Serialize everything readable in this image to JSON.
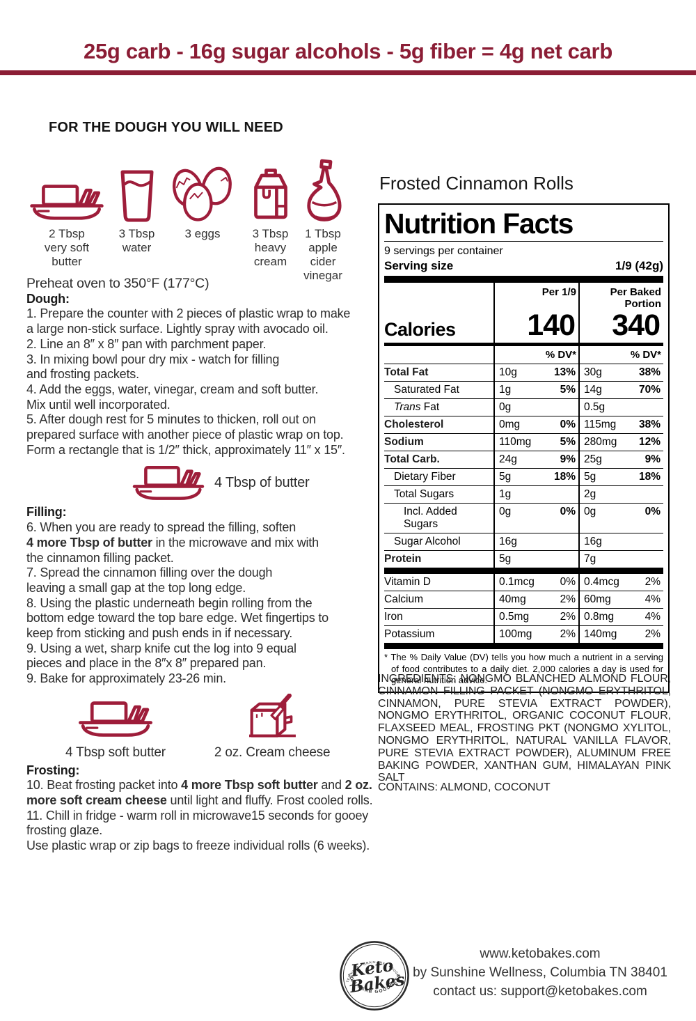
{
  "colors": {
    "accent_maroon": "#8b1d35",
    "icon_crimson": "#9e1d3a",
    "ink": "#000000"
  },
  "header": {
    "tagline": "25g carb - 16g sugar alcohols - 5g fiber = 4g net carb"
  },
  "dough_section": {
    "heading": "FOR THE DOUGH YOU WILL NEED",
    "ingredients": [
      {
        "icon": "butter-dish-icon",
        "label": "2 Tbsp\nvery soft\nbutter"
      },
      {
        "icon": "water-glass-icon",
        "label": "3 Tbsp\nwater"
      },
      {
        "icon": "eggs-icon",
        "label": "3 eggs"
      },
      {
        "icon": "cream-carton-icon",
        "label": "3 Tbsp\nheavy\ncream"
      },
      {
        "icon": "vinegar-bottle-icon",
        "label": "1 Tbsp\napple\ncider\nvinegar"
      }
    ]
  },
  "instructions": {
    "preheat": "Preheat oven to 350°F (177°C)",
    "dough_heading": "Dough:",
    "dough_lines": [
      "1. Prepare the counter with 2 pieces of plastic wrap to make",
      "a large non-stick surface.  Lightly spray with avocado oil.",
      "2. Line an 8″ x 8″ pan with parchment paper.",
      "3. In mixing bowl pour dry mix - watch for filling",
      "and frosting packets.",
      "4. Add the eggs, water, vinegar, cream and soft butter.",
      "Mix until well incorporated.",
      "5. After dough rest for 5 minutes to thicken, roll out on",
      "prepared surface with another piece of plastic wrap on top.",
      "Form a rectangle that is 1/2″ thick, approximately 11″ x 15″."
    ],
    "butter_callout": "4 Tbsp of butter",
    "filling_heading": "Filling:",
    "step6_l1": "6. When you are ready to spread the filling, soften",
    "step6_bold": "4 more Tbsp of butter",
    "step6_l2rest": " in the microwave and mix with",
    "step6_l3": "the cinnamon filling packet.",
    "filling_lines": [
      "7. Spread the cinnamon filling over the dough",
      "leaving a small gap at the top long edge.",
      "8. Using the plastic underneath begin rolling from the",
      "bottom edge toward the top bare edge.   Wet fingertips to",
      "keep from sticking and push ends in if necessary.",
      "9. Using a wet, sharp knife cut the log into 9 equal",
      "pieces and place in the 8″x 8″ prepared pan.",
      "9. Bake for approximately 23-26 min."
    ],
    "frosting_butter_label": "4 Tbsp soft butter",
    "frosting_cheese_label": "2 oz. Cream cheese",
    "frosting_heading": "Frosting:",
    "step10_pre": "10. Beat frosting packet into ",
    "step10_bold1": "4 more Tbsp soft butter",
    "step10_mid": " and ",
    "step10_bold2": "2 oz.",
    "step10_bold3": "more soft cream cheese",
    "step10_l2rest": " until light and fluffy.  Frost cooled rolls.",
    "frosting_lines": [
      "11. Chill in fridge - warm roll in microwave15 seconds for gooey",
      "frosting glaze.",
      "Use plastic wrap or zip bags to freeze individual rolls (6 weeks)."
    ]
  },
  "nutrition": {
    "product_title": "Frosted Cinnamon Rolls",
    "title": "Nutrition Facts",
    "servings": "9 servings per container",
    "serving_size_label": "Serving size",
    "serving_size_value": "1/9 (42g)",
    "col1_header": "Per 1/9",
    "col2_header": "Per Baked\nPortion",
    "calories_label": "Calories",
    "calories_per_serving": "140",
    "calories_per_baked": "340",
    "dv_header": "% DV*",
    "rows": [
      {
        "name": "Total Fat",
        "bold": true,
        "indent": 0,
        "v1": "10g",
        "p1": "13%",
        "v2": "30g",
        "p2": "38%"
      },
      {
        "name": "Saturated Fat",
        "bold": false,
        "indent": 1,
        "v1": "1g",
        "p1": "5%",
        "v2": "14g",
        "p2": "70%"
      },
      {
        "name": "Trans Fat",
        "bold": false,
        "indent": 1,
        "italic_lead": true,
        "v1": "0g",
        "p1": "",
        "v2": "0.5g",
        "p2": ""
      },
      {
        "name": "Cholesterol",
        "bold": true,
        "indent": 0,
        "v1": "0mg",
        "p1": "0%",
        "v2": "115mg",
        "p2": "38%"
      },
      {
        "name": "Sodium",
        "bold": true,
        "indent": 0,
        "v1": "110mg",
        "p1": "5%",
        "v2": "280mg",
        "p2": "12%"
      },
      {
        "name": "Total Carb.",
        "bold": true,
        "indent": 0,
        "v1": "24g",
        "p1": "9%",
        "v2": "25g",
        "p2": "9%"
      },
      {
        "name": "Dietary Fiber",
        "bold": false,
        "indent": 1,
        "v1": "5g",
        "p1": "18%",
        "v2": "5g",
        "p2": "18%"
      },
      {
        "name": "Total Sugars",
        "bold": false,
        "indent": 1,
        "v1": "1g",
        "p1": "",
        "v2": "2g",
        "p2": ""
      },
      {
        "name": "Incl. Added Sugars",
        "bold": false,
        "indent": 2,
        "v1": "0g",
        "p1": "0%",
        "v2": "0g",
        "p2": "0%"
      },
      {
        "name": "Sugar Alcohol",
        "bold": false,
        "indent": 1,
        "v1": "16g",
        "p1": "",
        "v2": "16g",
        "p2": ""
      },
      {
        "name": "Protein",
        "bold": true,
        "indent": 0,
        "last": true,
        "v1": "5g",
        "p1": "",
        "v2": "7g",
        "p2": ""
      }
    ],
    "vitamins": [
      {
        "name": "Vitamin D",
        "v1": "0.1mcg",
        "p1": "0%",
        "v2": "0.4mcg",
        "p2": "2%"
      },
      {
        "name": "Calcium",
        "v1": "40mg",
        "p1": "2%",
        "v2": "60mg",
        "p2": "4%"
      },
      {
        "name": "Iron",
        "v1": "0.5mg",
        "p1": "2%",
        "v2": "0.8mg",
        "p2": "4%"
      },
      {
        "name": "Potassium",
        "v1": "100mg",
        "p1": "2%",
        "v2": "140mg",
        "p2": "2%",
        "last": true
      }
    ],
    "footnote": "* The % Daily Value (DV) tells you how much a nutrient in a serving of food contributes to a daily diet. 2,000 calories a day is used for general nutrition advice."
  },
  "ingredients_statement": "INGREDIENTS: NONGMO BLANCHED ALMOND FLOUR, CINNAMON FILLING PACKET (NONGMO ERYTHRITOL, CINNAMON, PURE STEVIA EXTRACT POWDER), NONGMO ERYTHRITOL, ORGANIC COCONUT FLOUR, FLAXSEED MEAL, FROSTING PKT (NONGMO XYLITOL, NONGMO ERYTHRITOL, NATURAL VANILLA FLAVOR, PURE STEVIA EXTRACT POWDER), ALUMINUM FREE BAKING POWDER, XANTHAN GUM, HIMALAYAN PINK SALT",
  "contains_statement": "CONTAINS: ALMOND, COCONUT",
  "footer": {
    "logo": {
      "arc_top": "GLUTEN FREE • GRAIN FREE • SUGAR FREE",
      "brand_line1": "Keto",
      "brand_line2": "Bakes",
      "arc_bottom": "LOW CARB GOODNESS"
    },
    "website": "www.ketobakes.com",
    "byline": "by Sunshine Wellness, Columbia TN 38401",
    "contact": "contact us: support@ketobakes.com"
  }
}
